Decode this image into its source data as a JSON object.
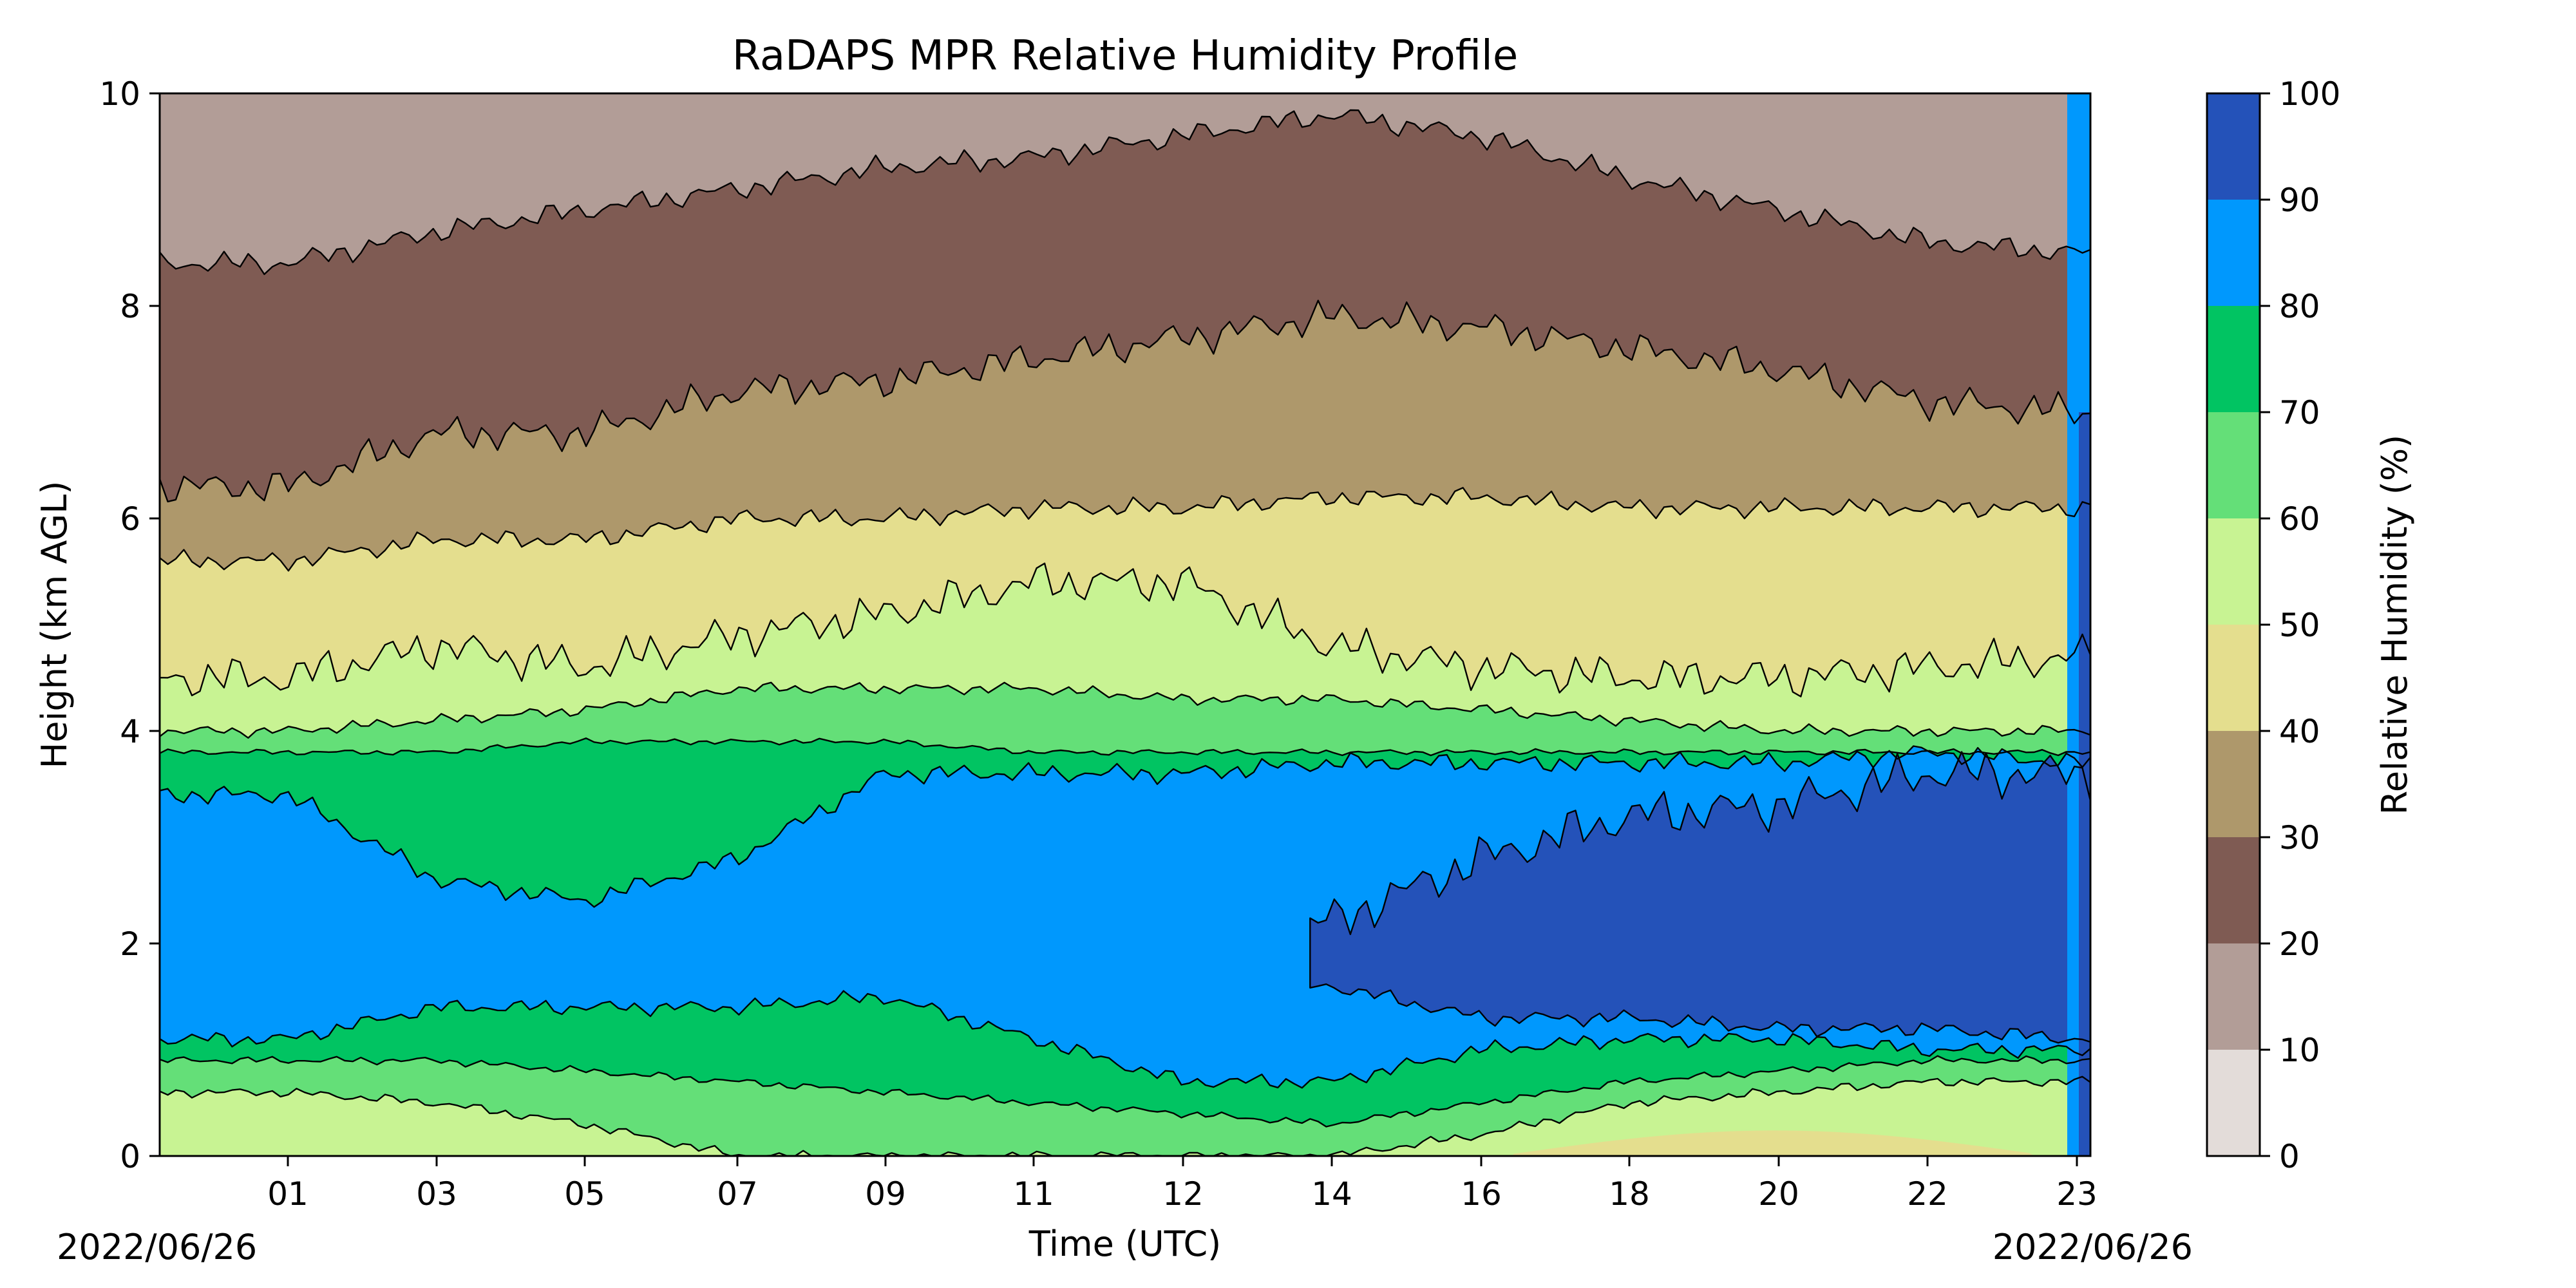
{
  "chart_data": {
    "type": "heatmap",
    "subtype": "filled-contour",
    "title": "RaDAPS MPR Relative Humidity Profile",
    "xlabel": "Time (UTC)",
    "ylabel": "Height (km AGL)",
    "colorbar_label": "Relative Humidity (%)",
    "date_left": "2022/06/26",
    "date_right": "2022/06/26",
    "x_ticks": [
      "01",
      "03",
      "05",
      "07",
      "09",
      "11",
      "12",
      "14",
      "16",
      "18",
      "20",
      "22",
      "23"
    ],
    "y_ticks": [
      "0",
      "2",
      "4",
      "6",
      "8",
      "10"
    ],
    "ylim": [
      0,
      10
    ],
    "levels": [
      0,
      10,
      20,
      30,
      40,
      50,
      60,
      70,
      80,
      90,
      100
    ],
    "level_colors": [
      "#e3dcd9",
      "#b29d97",
      "#7f5b53",
      "#ae986b",
      "#e4de8e",
      "#c8f393",
      "#64df78",
      "#01c462",
      "#0098fd",
      "#2452b9"
    ],
    "colorbar_ticks": [
      "0",
      "10",
      "20",
      "30",
      "40",
      "50",
      "60",
      "70",
      "80",
      "90",
      "100"
    ],
    "grid": false,
    "approx_boundaries_km": {
      "note": "approximate height (km) of each humidity contour across the day, sampled at the x tick times listed in x_ticks",
      "rh_20": [
        8.4,
        8.7,
        8.9,
        9.1,
        9.3,
        9.4,
        9.6,
        9.8,
        9.6,
        9.2,
        8.9,
        8.6,
        8.5
      ],
      "rh_30": [
        6.3,
        6.8,
        6.8,
        7.2,
        7.3,
        7.5,
        7.7,
        7.9,
        7.8,
        7.6,
        7.4,
        7.1,
        7.0
      ],
      "rh_40": [
        5.6,
        5.8,
        5.8,
        6.0,
        6.0,
        6.1,
        6.1,
        6.2,
        6.2,
        6.1,
        6.1,
        6.1,
        6.1
      ],
      "rh_50": [
        4.5,
        4.8,
        4.6,
        4.9,
        5.1,
        5.4,
        5.4,
        4.8,
        4.6,
        4.5,
        4.5,
        4.6,
        4.7
      ],
      "rh_60": [
        4.0,
        4.1,
        4.2,
        4.4,
        4.4,
        4.4,
        4.3,
        4.3,
        4.2,
        4.1,
        4.0,
        4.0,
        4.0
      ],
      "rh_70": [
        3.8,
        3.8,
        3.9,
        3.9,
        3.9,
        3.8,
        3.8,
        3.8,
        3.8,
        3.8,
        3.8,
        3.8,
        3.8
      ],
      "rh_80_top": [
        3.4,
        2.6,
        2.4,
        2.8,
        3.6,
        3.6,
        3.6,
        3.7,
        3.7,
        3.7,
        3.7,
        3.8,
        3.7
      ],
      "rh_90_top": [
        null,
        null,
        null,
        null,
        null,
        null,
        null,
        2.2,
        2.8,
        3.2,
        3.3,
        3.6,
        3.6
      ],
      "rh_90_bottom": [
        null,
        null,
        null,
        null,
        null,
        null,
        null,
        1.6,
        1.3,
        1.3,
        1.2,
        1.2,
        1.1
      ],
      "rh_80_bottom": [
        1.1,
        1.4,
        1.4,
        1.4,
        1.5,
        1.1,
        0.7,
        0.7,
        1.0,
        1.1,
        1.1,
        1.0,
        1.0
      ],
      "rh_70_bottom": [
        0.9,
        0.9,
        0.8,
        0.7,
        0.6,
        0.5,
        0.4,
        0.3,
        0.5,
        0.7,
        0.8,
        0.9,
        0.9
      ],
      "rh_60_bottom": [
        0.6,
        0.5,
        0.3,
        0.0,
        0.0,
        0.0,
        0.0,
        0.0,
        0.2,
        0.5,
        0.6,
        0.7,
        0.7
      ]
    }
  }
}
